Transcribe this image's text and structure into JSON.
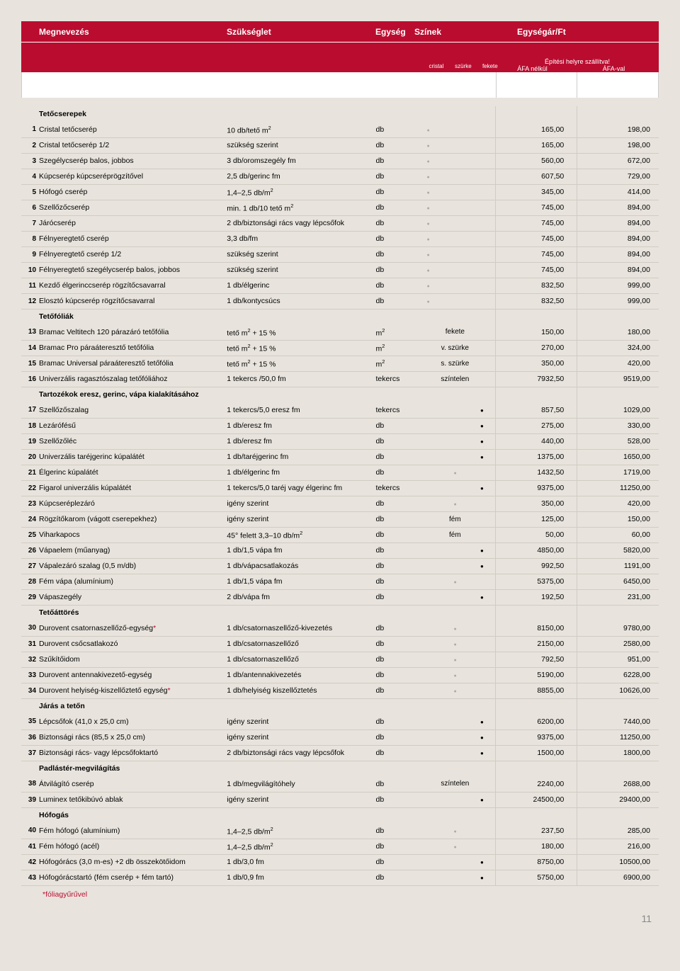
{
  "header": {
    "name": "Megnevezés",
    "req": "Szükséglet",
    "unit": "Egység",
    "colors": "Színek",
    "price": "Egységár/Ft",
    "delivery": "Építési helyre szállítva!",
    "vat_off": "ÁFA nélkül",
    "vat_on": "ÁFA-val",
    "c1": "cristal",
    "c2": "szürke",
    "c3": "fekete"
  },
  "footnote": "*fóliagyűrűvel",
  "pagenum": "11",
  "rows": [
    {
      "type": "section",
      "name": "Tetőcserepek"
    },
    {
      "num": "1",
      "name": "Cristal tetőcserép",
      "req": "10 db/tető m²",
      "unit": "db",
      "c1": "g",
      "p1": "165,00",
      "p2": "198,00"
    },
    {
      "num": "2",
      "name": "Cristal tetőcserép 1/2",
      "req": "szükség szerint",
      "unit": "db",
      "c1": "g",
      "p1": "165,00",
      "p2": "198,00"
    },
    {
      "num": "3",
      "name": "Szegélycserép balos, jobbos",
      "req": "3 db/oromszegély fm",
      "unit": "db",
      "c1": "g",
      "p1": "560,00",
      "p2": "672,00"
    },
    {
      "num": "4",
      "name": "Kúpcserép kúpcseréprögzítővel",
      "req": "2,5 db/gerinc fm",
      "unit": "db",
      "c1": "g",
      "p1": "607,50",
      "p2": "729,00"
    },
    {
      "num": "5",
      "name": "Hófogó cserép",
      "req": "1,4–2,5 db/m²",
      "unit": "db",
      "c1": "g",
      "p1": "345,00",
      "p2": "414,00"
    },
    {
      "num": "6",
      "name": "Szellőzőcserép",
      "req": "min. 1 db/10 tető m²",
      "unit": "db",
      "c1": "g",
      "p1": "745,00",
      "p2": "894,00"
    },
    {
      "num": "7",
      "name": "Járócserép",
      "req": "2 db/biztonsági rács vagy lépcsőfok",
      "unit": "db",
      "c1": "g",
      "p1": "745,00",
      "p2": "894,00"
    },
    {
      "num": "8",
      "name": "Félnyeregtető cserép",
      "req": "3,3 db/fm",
      "unit": "db",
      "c1": "g",
      "p1": "745,00",
      "p2": "894,00"
    },
    {
      "num": "9",
      "name": "Félnyeregtető cserép 1/2",
      "req": "szükség szerint",
      "unit": "db",
      "c1": "g",
      "p1": "745,00",
      "p2": "894,00"
    },
    {
      "num": "10",
      "name": "Félnyeregtető szegélycserép balos, jobbos",
      "req": "szükség szerint",
      "unit": "db",
      "c1": "g",
      "p1": "745,00",
      "p2": "894,00"
    },
    {
      "num": "11",
      "name": "Kezdő élgerinccserép rögzítőcsavarral",
      "req": "1 db/élgerinc",
      "unit": "db",
      "c1": "g",
      "p1": "832,50",
      "p2": "999,00"
    },
    {
      "num": "12",
      "name": "Elosztó kúpcserép rögzítőcsavarral",
      "req": "1 db/kontycsúcs",
      "unit": "db",
      "c1": "g",
      "p1": "832,50",
      "p2": "999,00"
    },
    {
      "type": "section",
      "name": "Tetőfóliák"
    },
    {
      "num": "13",
      "name": "Bramac Veltitech 120 párazáró tetőfólia",
      "req": "tető m² + 15 %",
      "unit": "m²",
      "ct": "fekete",
      "p1": "150,00",
      "p2": "180,00"
    },
    {
      "num": "14",
      "name": "Bramac Pro páraáteresztő tetőfólia",
      "req": "tető m² + 15 %",
      "unit": "m²",
      "ct": "v. szürke",
      "p1": "270,00",
      "p2": "324,00"
    },
    {
      "num": "15",
      "name": "Bramac Universal páraáteresztő tetőfólia",
      "req": "tető m² + 15 %",
      "unit": "m²",
      "ct": "s. szürke",
      "p1": "350,00",
      "p2": "420,00"
    },
    {
      "num": "16",
      "name": "Univerzális ragasztószalag tetőfóliához",
      "req": "1 tekercs /50,0 fm",
      "unit": "tekercs",
      "ct": "színtelen",
      "p1": "7932,50",
      "p2": "9519,00"
    },
    {
      "type": "section",
      "name": "Tartozékok eresz, gerinc, vápa kialakításához"
    },
    {
      "num": "17",
      "name": "Szellőzőszalag",
      "req": "1 tekercs/5,0 eresz fm",
      "unit": "tekercs",
      "c3": "b",
      "p1": "857,50",
      "p2": "1029,00"
    },
    {
      "num": "18",
      "name": "Lezárófésű",
      "req": "1 db/eresz fm",
      "unit": "db",
      "c3": "b",
      "p1": "275,00",
      "p2": "330,00"
    },
    {
      "num": "19",
      "name": "Szellőzőléc",
      "req": "1 db/eresz fm",
      "unit": "db",
      "c3": "b",
      "p1": "440,00",
      "p2": "528,00"
    },
    {
      "num": "20",
      "name": "Univerzális taréjgerinc kúpalátét",
      "req": "1 db/taréjgerinc fm",
      "unit": "db",
      "c3": "b",
      "p1": "1375,00",
      "p2": "1650,00"
    },
    {
      "num": "21",
      "name": "Élgerinc kúpalátét",
      "req": "1 db/élgerinc fm",
      "unit": "db",
      "c2": "g",
      "p1": "1432,50",
      "p2": "1719,00"
    },
    {
      "num": "22",
      "name": "Figarol univerzális kúpalátét",
      "req": "1 tekercs/5,0 taréj vagy élgerinc fm",
      "unit": "tekercs",
      "c3": "b",
      "p1": "9375,00",
      "p2": "11250,00"
    },
    {
      "num": "23",
      "name": "Kúpcseréplezáró",
      "req": "igény szerint",
      "unit": "db",
      "c2": "g",
      "p1": "350,00",
      "p2": "420,00"
    },
    {
      "num": "24",
      "name": "Rögzítőkarom (vágott cserepekhez)",
      "req": "igény szerint",
      "unit": "db",
      "ct": "fém",
      "p1": "125,00",
      "p2": "150,00"
    },
    {
      "num": "25",
      "name": "Viharkapocs",
      "req": "45° felett 3,3–10 db/m²",
      "unit": "db",
      "ct": "fém",
      "p1": "50,00",
      "p2": "60,00"
    },
    {
      "num": "26",
      "name": "Vápaelem (műanyag)",
      "req": "1 db/1,5 vápa fm",
      "unit": "db",
      "c3": "b",
      "p1": "4850,00",
      "p2": "5820,00"
    },
    {
      "num": "27",
      "name": "Vápalezáró szalag (0,5 m/db)",
      "req": "1 db/vápacsatlakozás",
      "unit": "db",
      "c3": "b",
      "p1": "992,50",
      "p2": "1191,00"
    },
    {
      "num": "28",
      "name": "Fém vápa (alumínium)",
      "req": "1 db/1,5 vápa fm",
      "unit": "db",
      "c2": "g",
      "p1": "5375,00",
      "p2": "6450,00"
    },
    {
      "num": "29",
      "name": "Vápaszegély",
      "req": "2 db/vápa fm",
      "unit": "db",
      "c3": "b",
      "p1": "192,50",
      "p2": "231,00"
    },
    {
      "type": "section",
      "name": "Tetőáttörés"
    },
    {
      "num": "30",
      "name": "Durovent csatornaszellőző-egység",
      "star": true,
      "req": "1 db/csatornaszellőző-kivezetés",
      "unit": "db",
      "c2": "g",
      "p1": "8150,00",
      "p2": "9780,00"
    },
    {
      "num": "31",
      "name": "Durovent csőcsatlakozó",
      "req": "1 db/csatornaszellőző",
      "unit": "db",
      "c2": "g",
      "p1": "2150,00",
      "p2": "2580,00"
    },
    {
      "num": "32",
      "name": "Szűkítőidom",
      "req": "1 db/csatornaszellőző",
      "unit": "db",
      "c2": "g",
      "p1": "792,50",
      "p2": "951,00"
    },
    {
      "num": "33",
      "name": "Durovent antennakivezető-egység",
      "req": "1 db/antennakivezetés",
      "unit": "db",
      "c2": "g",
      "p1": "5190,00",
      "p2": "6228,00"
    },
    {
      "num": "34",
      "name": "Durovent helyiség-kiszellőztető egység",
      "star": true,
      "req": "1 db/helyiség kiszellőztetés",
      "unit": "db",
      "c2": "g",
      "p1": "8855,00",
      "p2": "10626,00"
    },
    {
      "type": "section",
      "name": "Járás a tetőn"
    },
    {
      "num": "35",
      "name": "Lépcsőfok (41,0 x 25,0 cm)",
      "req": "igény szerint",
      "unit": "db",
      "c3": "b",
      "p1": "6200,00",
      "p2": "7440,00"
    },
    {
      "num": "36",
      "name": "Biztonsági rács (85,5 x 25,0 cm)",
      "req": "igény szerint",
      "unit": "db",
      "c3": "b",
      "p1": "9375,00",
      "p2": "11250,00"
    },
    {
      "num": "37",
      "name": "Biztonsági rács- vagy lépcsőfoktartó",
      "req": "2 db/biztonsági rács vagy lépcsőfok",
      "unit": "db",
      "c3": "b",
      "p1": "1500,00",
      "p2": "1800,00"
    },
    {
      "type": "section",
      "name": "Padlástér-megvilágítás"
    },
    {
      "num": "38",
      "name": "Átvilágító cserép",
      "req": "1 db/megvilágítóhely",
      "unit": "db",
      "ct": "színtelen",
      "p1": "2240,00",
      "p2": "2688,00"
    },
    {
      "num": "39",
      "name": "Luminex tetőkibúvó ablak",
      "req": "igény szerint",
      "unit": "db",
      "c3": "b",
      "p1": "24500,00",
      "p2": "29400,00"
    },
    {
      "type": "section",
      "name": "Hófogás"
    },
    {
      "num": "40",
      "name": "Fém hófogó (alumínium)",
      "req": "1,4–2,5 db/m²",
      "unit": "db",
      "c2": "g",
      "p1": "237,50",
      "p2": "285,00"
    },
    {
      "num": "41",
      "name": "Fém hófogó (acél)",
      "req": "1,4–2,5 db/m²",
      "unit": "db",
      "c2": "g",
      "p1": "180,00",
      "p2": "216,00"
    },
    {
      "num": "42",
      "name": "Hófogórács (3,0 m-es) +2 db összekötőidom",
      "req": "1 db/3,0 fm",
      "unit": "db",
      "c3": "b",
      "p1": "8750,00",
      "p2": "10500,00"
    },
    {
      "num": "43",
      "name": "Hófogórácstartó (fém cserép + fém tartó)",
      "req": "1 db/0,9 fm",
      "unit": "db",
      "c3": "b",
      "p1": "5750,00",
      "p2": "6900,00"
    }
  ]
}
